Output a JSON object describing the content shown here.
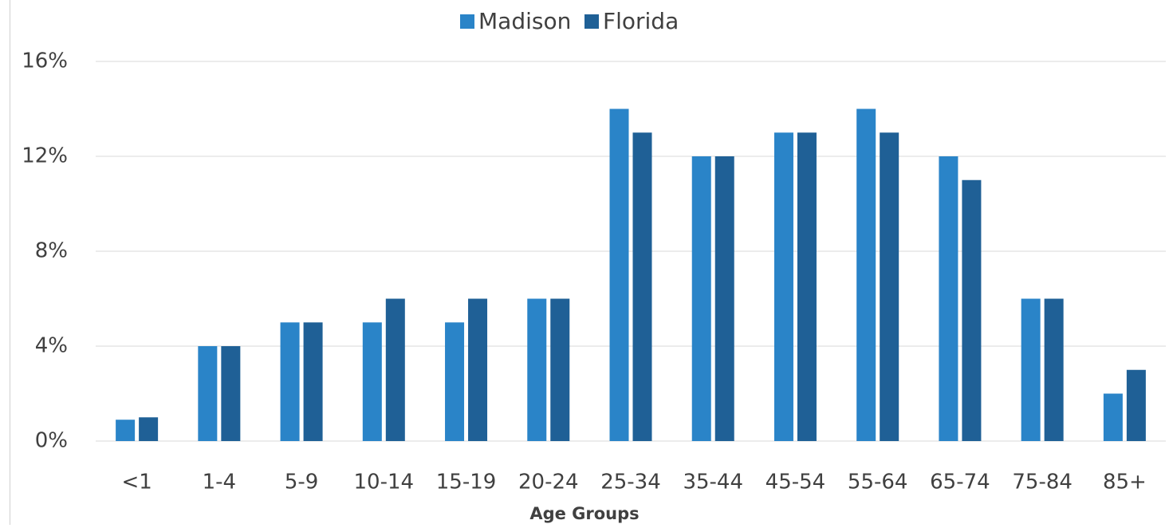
{
  "chart_data": {
    "type": "bar",
    "x_label": "Age Groups",
    "categories": [
      "<1",
      "1-4",
      "5-9",
      "10-14",
      "15-19",
      "20-24",
      "25-34",
      "35-44",
      "45-54",
      "55-64",
      "65-74",
      "75-84",
      "85+"
    ],
    "series": [
      {
        "name": "Madison",
        "color": "#2a84c8",
        "values": [
          0.9,
          4,
          5,
          5,
          5,
          6,
          14,
          12,
          13,
          14,
          12,
          6,
          2
        ]
      },
      {
        "name": "Florida",
        "color": "#1f6096",
        "values": [
          1,
          4,
          5,
          6,
          6,
          6,
          13,
          12,
          13,
          13,
          11,
          6,
          3
        ]
      }
    ],
    "ylim": [
      0,
      16
    ],
    "yticks": [
      {
        "value": 0,
        "label": "0%"
      },
      {
        "value": 4,
        "label": "4%"
      },
      {
        "value": 8,
        "label": "8%"
      },
      {
        "value": 12,
        "label": "12%"
      },
      {
        "value": 16,
        "label": "16%"
      }
    ],
    "grid": true,
    "legend": "top"
  }
}
